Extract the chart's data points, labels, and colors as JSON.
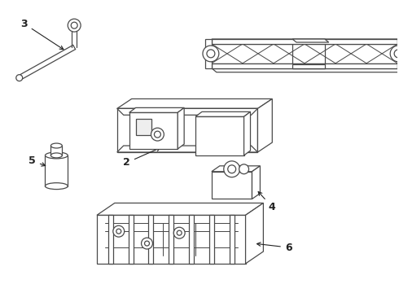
{
  "bg_color": "#ffffff",
  "line_color": "#4a4a4a",
  "label_color": "#222222",
  "label_fontsize": 9,
  "fig_width": 4.9,
  "fig_height": 3.6,
  "dpi": 100
}
